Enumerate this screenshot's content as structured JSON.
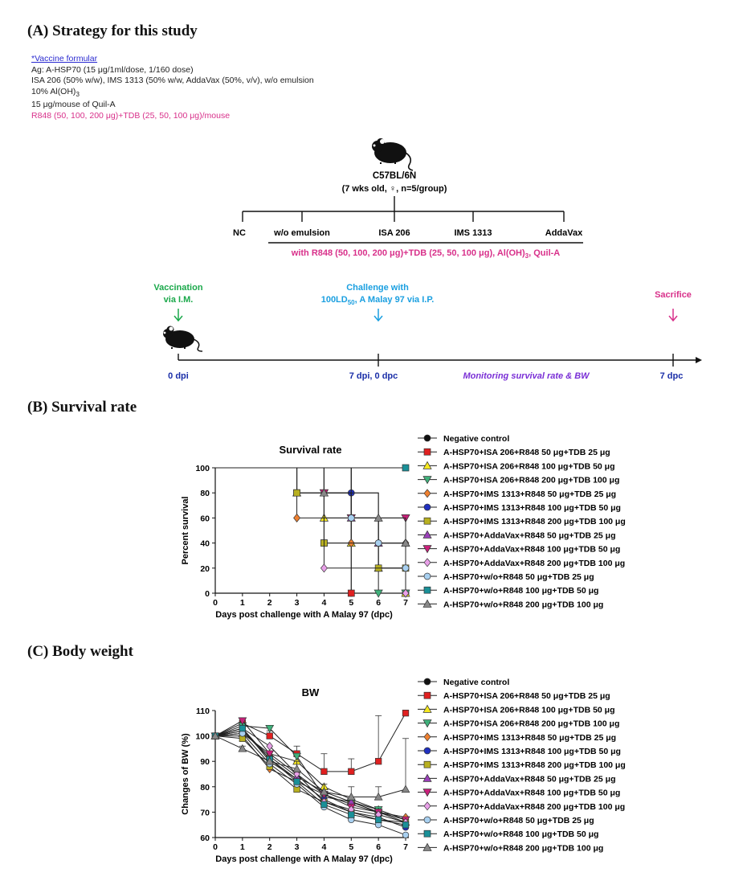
{
  "sections": {
    "a_title": "(A)  Strategy  for  this  study",
    "b_title": "(B)  Survival  rate",
    "c_title": "(C)  Body  weight"
  },
  "formulation": {
    "header": "*Vaccine formular",
    "line1": "Ag: A-HSP70 (15 μg/1ml/dose, 1/160 dose)",
    "line2": "ISA 206 (50% w/w), IMS 1313 (50% w/w, AddaVax (50%, v/v), w/o emulsion",
    "line3_pre": "10% Al(OH)",
    "line3_sub": "3",
    "line4": "15 μg/mouse of Quil-A",
    "line5": "R848 (50, 100, 200 μg)+TDB (25, 50, 100 μg)/mouse"
  },
  "design": {
    "strain": "C57BL/6N",
    "cohort": "(7 wks old, ♀, n=5/group)",
    "groups": [
      "NC",
      "w/o emulsion",
      "ISA 206",
      "IMS 1313",
      "AddaVax"
    ],
    "adjuvant_pre": "with R848 (50, 100, 200 μg)+TDB (25, 50, 100 μg), Al(OH)",
    "adjuvant_sub": "3",
    "adjuvant_post": ", Quil-A"
  },
  "timeline": {
    "vacc_line1": "Vaccination",
    "vacc_line2": "via I.M.",
    "chal_line1": "Challenge with",
    "chal_line2_pre": "100LD",
    "chal_line2_sub": "50",
    "chal_line2_post": ", A Malay 97 via I.P.",
    "sacrifice": "Sacrifice",
    "t0": "0 dpi",
    "t1": "7 dpi, 0 dpc",
    "monitor": "Monitoring survival rate & BW",
    "t2": "7 dpc"
  },
  "colors": {
    "green": "#1aa84a",
    "cyan": "#1a9fe0",
    "pink": "#d8308a",
    "purple": "#7a2fd6",
    "navy": "#1a2ea8"
  },
  "legend": [
    {
      "label": "Negative control",
      "color": "#111111",
      "shape": "circle"
    },
    {
      "label": "A-HSP70+ISA 206+R848 50 μg+TDB 25 μg",
      "color": "#e02020",
      "shape": "square"
    },
    {
      "label": "A-HSP70+ISA 206+R848 100 μg+TDB 50 μg",
      "color": "#f5e820",
      "shape": "triangle-up"
    },
    {
      "label": "A-HSP70+ISA 206+R848 200 μg+TDB 100 μg",
      "color": "#3fb07a",
      "shape": "triangle-down"
    },
    {
      "label": "A-HSP70+IMS 1313+R848 50 μg+TDB 25 μg",
      "color": "#ee8030",
      "shape": "diamond"
    },
    {
      "label": "A-HSP70+IMS 1313+R848 100 μg+TDB 50 μg",
      "color": "#2030c0",
      "shape": "circle"
    },
    {
      "label": "A-HSP70+IMS 1313+R848 200 μg+TDB 100 μg",
      "color": "#b8b020",
      "shape": "square"
    },
    {
      "label": "A-HSP70+AddaVax+R848 50 μg+TDB 25 μg",
      "color": "#9a40b8",
      "shape": "triangle-up"
    },
    {
      "label": "A-HSP70+AddaVax+R848 100 μg+TDB 50 μg",
      "color": "#c8207a",
      "shape": "triangle-down"
    },
    {
      "label": "A-HSP70+AddaVax+R848 200 μg+TDB 100 μg",
      "color": "#e8a0e8",
      "shape": "diamond"
    },
    {
      "label": "A-HSP70+w/o+R848 50 μg+TDB 25 μg",
      "color": "#a8d0f0",
      "shape": "circle"
    },
    {
      "label": "A-HSP70+w/o+R848 100 μg+TDB 50 μg",
      "color": "#1a9098",
      "shape": "square"
    },
    {
      "label": "A-HSP70+w/o+R848 200 μg+TDB 100 μg",
      "color": "#888888",
      "shape": "triangle-up"
    }
  ],
  "chart_data": [
    {
      "type": "line",
      "title": "Survival rate",
      "xlabel": "Days post challenge with A Malay 97 (dpc)",
      "ylabel": "Percent survival",
      "x": [
        0,
        1,
        2,
        3,
        4,
        5,
        6,
        7
      ],
      "xlim": [
        0,
        7
      ],
      "ylim": [
        0,
        100
      ],
      "yticks": [
        0,
        20,
        40,
        60,
        80,
        100
      ],
      "legend_position": "right",
      "series": [
        {
          "name": "Negative control",
          "points": [
            [
              0,
              100
            ],
            [
              4,
              100
            ],
            [
              5,
              0
            ],
            [
              7,
              0
            ]
          ]
        },
        {
          "name": "A-HSP70+ISA 206+R848 50 μg+TDB 25 μg",
          "points": [
            [
              0,
              100
            ],
            [
              3,
              80
            ],
            [
              4,
              40
            ],
            [
              5,
              0
            ],
            [
              7,
              0
            ]
          ]
        },
        {
          "name": "A-HSP70+ISA 206+R848 100 μg+TDB 50 μg",
          "points": [
            [
              0,
              100
            ],
            [
              3,
              80
            ],
            [
              4,
              60
            ],
            [
              5,
              40
            ],
            [
              6,
              20
            ],
            [
              7,
              0
            ]
          ]
        },
        {
          "name": "A-HSP70+ISA 206+R848 200 μg+TDB 100 μg",
          "points": [
            [
              0,
              100
            ],
            [
              4,
              80
            ],
            [
              5,
              60
            ],
            [
              6,
              0
            ],
            [
              7,
              0
            ]
          ]
        },
        {
          "name": "A-HSP70+IMS 1313+R848 50 μg+TDB 25 μg",
          "points": [
            [
              0,
              100
            ],
            [
              3,
              60
            ],
            [
              5,
              40
            ],
            [
              7,
              40
            ]
          ]
        },
        {
          "name": "A-HSP70+IMS 1313+R848 100 μg+TDB 50 μg",
          "points": [
            [
              0,
              100
            ],
            [
              5,
              80
            ],
            [
              6,
              40
            ],
            [
              7,
              20
            ]
          ]
        },
        {
          "name": "A-HSP70+IMS 1313+R848 200 μg+TDB 100 μg",
          "points": [
            [
              0,
              100
            ],
            [
              3,
              80
            ],
            [
              4,
              40
            ],
            [
              6,
              20
            ],
            [
              7,
              20
            ]
          ]
        },
        {
          "name": "A-HSP70+AddaVax+R848 50 μg+TDB 25 μg",
          "points": [
            [
              0,
              100
            ],
            [
              4,
              80
            ],
            [
              5,
              60
            ],
            [
              6,
              40
            ],
            [
              7,
              40
            ]
          ]
        },
        {
          "name": "A-HSP70+AddaVax+R848 100 μg+TDB 50 μg",
          "points": [
            [
              0,
              100
            ],
            [
              4,
              80
            ],
            [
              5,
              60
            ],
            [
              7,
              60
            ]
          ]
        },
        {
          "name": "A-HSP70+AddaVax+R848 200 μg+TDB 100 μg",
          "points": [
            [
              0,
              100
            ],
            [
              4,
              20
            ],
            [
              5,
              20
            ],
            [
              6,
              20
            ],
            [
              7,
              0
            ]
          ]
        },
        {
          "name": "A-HSP70+w/o+R848 50 μg+TDB 25 μg",
          "points": [
            [
              0,
              100
            ],
            [
              5,
              60
            ],
            [
              6,
              40
            ],
            [
              7,
              20
            ]
          ]
        },
        {
          "name": "A-HSP70+w/o+R848 100 μg+TDB 50 μg",
          "points": [
            [
              0,
              100
            ],
            [
              7,
              100
            ]
          ]
        },
        {
          "name": "A-HSP70+w/o+R848 200 μg+TDB 100 μg",
          "points": [
            [
              0,
              100
            ],
            [
              4,
              80
            ],
            [
              6,
              60
            ],
            [
              7,
              40
            ]
          ]
        }
      ]
    },
    {
      "type": "line",
      "title": "BW",
      "xlabel": "Days post challenge with A Malay 97 (dpc)",
      "ylabel": "Changes of BW (%)",
      "x": [
        0,
        1,
        2,
        3,
        4,
        5,
        6,
        7
      ],
      "xlim": [
        0,
        7
      ],
      "ylim": [
        60,
        110
      ],
      "yticks": [
        60,
        70,
        80,
        90,
        100,
        110
      ],
      "legend_position": "right",
      "series": [
        {
          "name": "Negative control",
          "values": [
            100,
            103,
            90,
            83,
            75,
            null,
            null,
            null
          ]
        },
        {
          "name": "A-HSP70+ISA 206+R848 50 μg+TDB 25 μg",
          "values": [
            100,
            105,
            100,
            93,
            86,
            86,
            90,
            109
          ],
          "error": [
            0,
            1,
            2,
            3,
            7,
            5,
            18,
            0
          ]
        },
        {
          "name": "A-HSP70+ISA 206+R848 100 μg+TDB 50 μg",
          "values": [
            100,
            101,
            93,
            90,
            80,
            75,
            71,
            null
          ]
        },
        {
          "name": "A-HSP70+ISA 206+R848 200 μg+TDB 100 μg",
          "values": [
            100,
            104,
            103,
            92,
            76,
            74,
            71,
            67
          ]
        },
        {
          "name": "A-HSP70+IMS 1313+R848 50 μg+TDB 25 μg",
          "values": [
            100,
            100,
            87,
            82,
            77,
            73,
            70,
            68
          ]
        },
        {
          "name": "A-HSP70+IMS 1313+R848 100 μg+TDB 50 μg",
          "values": [
            100,
            102,
            91,
            83,
            75,
            70,
            68,
            64
          ]
        },
        {
          "name": "A-HSP70+IMS 1313+R848 200 μg+TDB 100 μg",
          "values": [
            100,
            99,
            88,
            79,
            74,
            70,
            67,
            66
          ]
        },
        {
          "name": "A-HSP70+AddaVax+R848 50 μg+TDB 25 μg",
          "values": [
            100,
            102,
            92,
            84,
            78,
            74,
            70,
            66
          ]
        },
        {
          "name": "A-HSP70+AddaVax+R848 100 μg+TDB 50 μg",
          "values": [
            100,
            106,
            93,
            85,
            77,
            72,
            70,
            67
          ]
        },
        {
          "name": "A-HSP70+AddaVax+R848 200 μg+TDB 100 μg",
          "values": [
            100,
            103,
            96,
            85,
            74,
            71,
            69,
            66
          ]
        },
        {
          "name": "A-HSP70+w/o+R848 50 μg+TDB 25 μg",
          "values": [
            100,
            101,
            89,
            81,
            72,
            67,
            65,
            61
          ]
        },
        {
          "name": "A-HSP70+w/o+R848 100 μg+TDB 50 μg",
          "values": [
            100,
            103,
            91,
            82,
            73,
            69,
            67,
            65
          ]
        },
        {
          "name": "A-HSP70+w/o+R848 200 μg+TDB 100 μg",
          "values": [
            100,
            95,
            90,
            87,
            78,
            76,
            76,
            79
          ],
          "error": [
            0,
            1,
            2,
            3,
            3,
            4,
            4,
            20
          ]
        }
      ]
    }
  ]
}
